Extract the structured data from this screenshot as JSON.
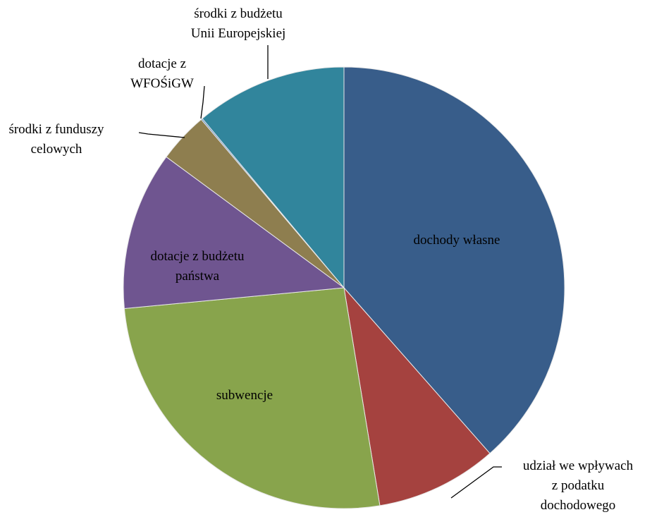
{
  "chart_data": {
    "type": "pie",
    "categories": [
      "dochody własne",
      "udział we wpływach\nz podatku\ndochodowego",
      "subwencje",
      "dotacje z budżetu\npaństwa",
      "środki z funduszy\ncelowych",
      "dotacje z\nWFOŚiGW",
      "środki z budżetu\nUnii Europejskiej"
    ],
    "values": [
      38.5,
      8.9,
      26.1,
      11.6,
      3.7,
      0.1,
      11.1
    ],
    "colors": [
      "#385d8a",
      "#a5423f",
      "#88a44c",
      "#6f5590",
      "#8e7e4f",
      "#4f81bd",
      "#31859c"
    ]
  }
}
